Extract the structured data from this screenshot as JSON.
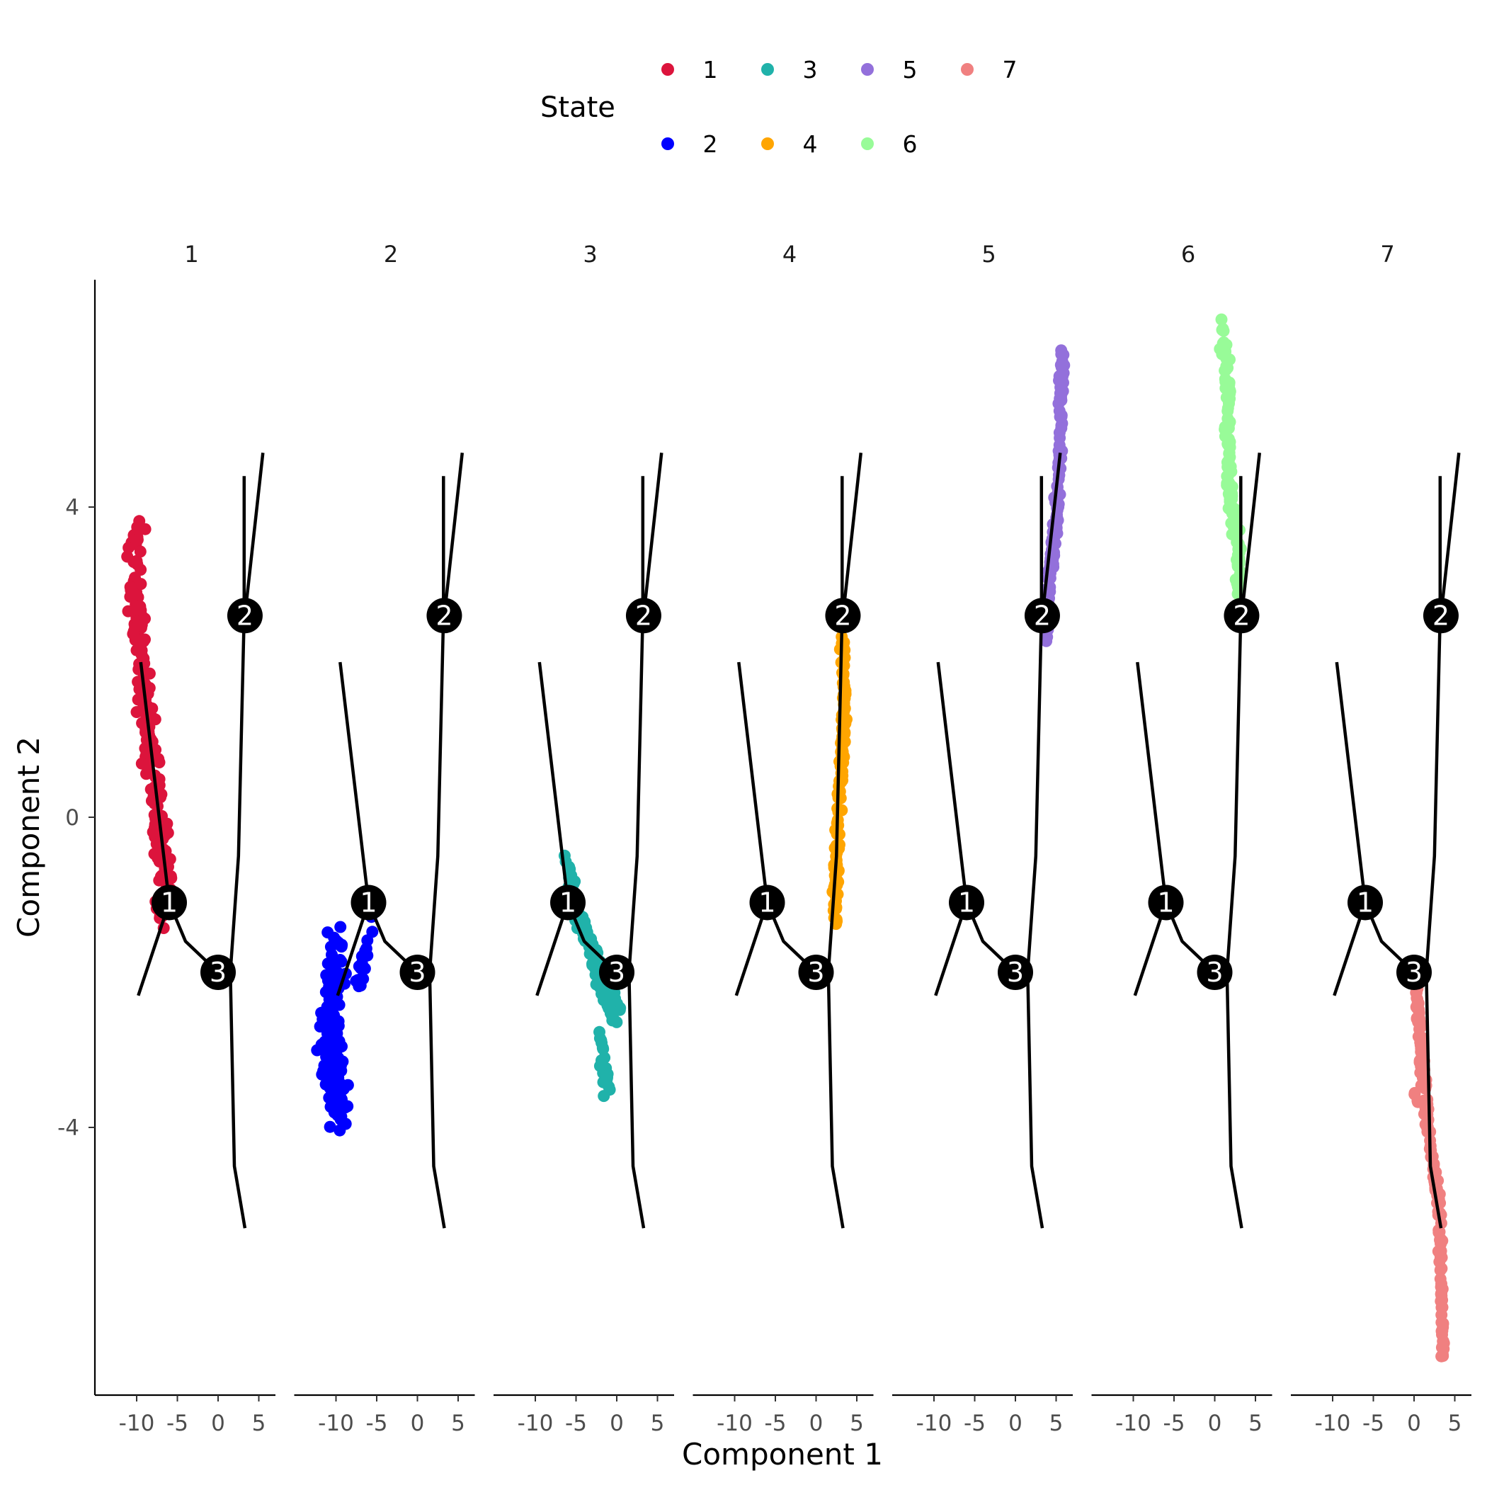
{
  "chart_data": {
    "type": "scatter",
    "title": "",
    "xlabel": "Component 1",
    "ylabel": "Component 2",
    "xlim": [
      -15,
      7
    ],
    "ylim": [
      -7.4,
      6.9
    ],
    "x_ticks": [
      -10,
      -5,
      0,
      5
    ],
    "x_tick_labels": [
      "-10",
      "-5",
      "0",
      "5"
    ],
    "y_ticks": [
      -4,
      0,
      4
    ],
    "y_tick_labels": [
      "-4",
      "0",
      "4"
    ],
    "facets": [
      "1",
      "2",
      "3",
      "4",
      "5",
      "6",
      "7"
    ],
    "legend": {
      "title": "State",
      "position": "top",
      "entries": [
        {
          "label": "1",
          "color": "#dc143c"
        },
        {
          "label": "2",
          "color": "#0000ff"
        },
        {
          "label": "3",
          "color": "#20b2aa"
        },
        {
          "label": "4",
          "color": "#ffa500"
        },
        {
          "label": "5",
          "color": "#9370db"
        },
        {
          "label": "6",
          "color": "#98fb98"
        },
        {
          "label": "7",
          "color": "#f08080"
        }
      ]
    },
    "trajectory": {
      "branches": [
        [
          [
            3.2,
            4.4
          ],
          [
            3.2,
            2.6
          ],
          [
            2.5,
            -0.5
          ],
          [
            1.5,
            -2.0
          ],
          [
            2.0,
            -4.5
          ],
          [
            3.3,
            -5.3
          ]
        ],
        [
          [
            5.5,
            4.7
          ],
          [
            3.3,
            2.6
          ]
        ],
        [
          [
            -9.5,
            2.0
          ],
          [
            -6.0,
            -1.1
          ],
          [
            -4.0,
            -1.6
          ],
          [
            0.0,
            -2.0
          ]
        ],
        [
          [
            -6.0,
            -1.1
          ],
          [
            -9.8,
            -2.3
          ]
        ]
      ],
      "branch_points": [
        {
          "label": "1",
          "x": -6.0,
          "y": -1.1
        },
        {
          "label": "2",
          "x": 3.3,
          "y": 2.6
        },
        {
          "label": "3",
          "x": 0.0,
          "y": -2.0
        }
      ]
    },
    "series": [
      {
        "name": "1",
        "color": "#dc143c",
        "path": [
          [
            -10.0,
            3.8
          ],
          [
            -10.3,
            3.0
          ],
          [
            -9.5,
            2.2
          ],
          [
            -9.0,
            1.5
          ],
          [
            -8.0,
            0.8
          ],
          [
            -7.5,
            0.0
          ],
          [
            -6.5,
            -0.7
          ],
          [
            -6.8,
            -1.4
          ]
        ],
        "spread": [
          1.0,
          0.2
        ],
        "n": 200
      },
      {
        "name": "2",
        "color": "#0000ff",
        "path": [
          [
            -10.0,
            -1.6
          ],
          [
            -10.5,
            -2.5
          ],
          [
            -10.8,
            -3.0
          ],
          [
            -9.5,
            -3.8
          ]
        ],
        "spread": [
          1.1,
          0.3
        ],
        "n": 160
      },
      {
        "name": "2",
        "color": "#0000ff",
        "path": [
          [
            -5.5,
            -1.3
          ],
          [
            -6.5,
            -1.9
          ],
          [
            -7.5,
            -2.3
          ]
        ],
        "spread": [
          0.4,
          0.15
        ],
        "n": 20
      },
      {
        "name": "3",
        "color": "#20b2aa",
        "path": [
          [
            -6.0,
            -0.6
          ],
          [
            -5.0,
            -1.2
          ],
          [
            -3.0,
            -1.8
          ],
          [
            -1.0,
            -2.3
          ],
          [
            0.0,
            -2.5
          ]
        ],
        "spread": [
          0.5,
          0.2
        ],
        "n": 120
      },
      {
        "name": "3",
        "color": "#20b2aa",
        "path": [
          [
            -2.0,
            -2.8
          ],
          [
            -1.5,
            -3.3
          ],
          [
            -1.0,
            -3.5
          ]
        ],
        "spread": [
          0.5,
          0.15
        ],
        "n": 25
      },
      {
        "name": "4",
        "color": "#ffa500",
        "path": [
          [
            3.2,
            2.3
          ],
          [
            3.5,
            1.5
          ],
          [
            2.8,
            0.0
          ],
          [
            2.2,
            -1.3
          ]
        ],
        "spread": [
          0.3,
          0.15
        ],
        "n": 150
      },
      {
        "name": "5",
        "color": "#9370db",
        "path": [
          [
            3.8,
            2.3
          ],
          [
            4.0,
            2.9
          ],
          [
            5.0,
            3.8
          ],
          [
            5.5,
            4.8
          ],
          [
            5.8,
            6.0
          ]
        ],
        "spread": [
          0.3,
          0.15
        ],
        "n": 150
      },
      {
        "name": "6",
        "color": "#98fb98",
        "path": [
          [
            1.0,
            6.3
          ],
          [
            1.5,
            5.8
          ],
          [
            1.8,
            4.2
          ],
          [
            2.8,
            3.6
          ],
          [
            3.0,
            2.8
          ]
        ],
        "spread": [
          0.35,
          0.15
        ],
        "n": 150
      },
      {
        "name": "7",
        "color": "#f08080",
        "path": [
          [
            0.3,
            -2.2
          ],
          [
            0.7,
            -2.8
          ],
          [
            1.5,
            -3.8
          ],
          [
            3.0,
            -5.0
          ],
          [
            3.3,
            -5.5
          ],
          [
            3.5,
            -7.0
          ]
        ],
        "spread": [
          0.25,
          0.12
        ],
        "n": 170
      },
      {
        "name": "7",
        "color": "#f08080",
        "path": [
          [
            -0.3,
            -3.4
          ],
          [
            0.5,
            -3.7
          ]
        ],
        "spread": [
          0.2,
          0.1
        ],
        "n": 4
      }
    ]
  }
}
